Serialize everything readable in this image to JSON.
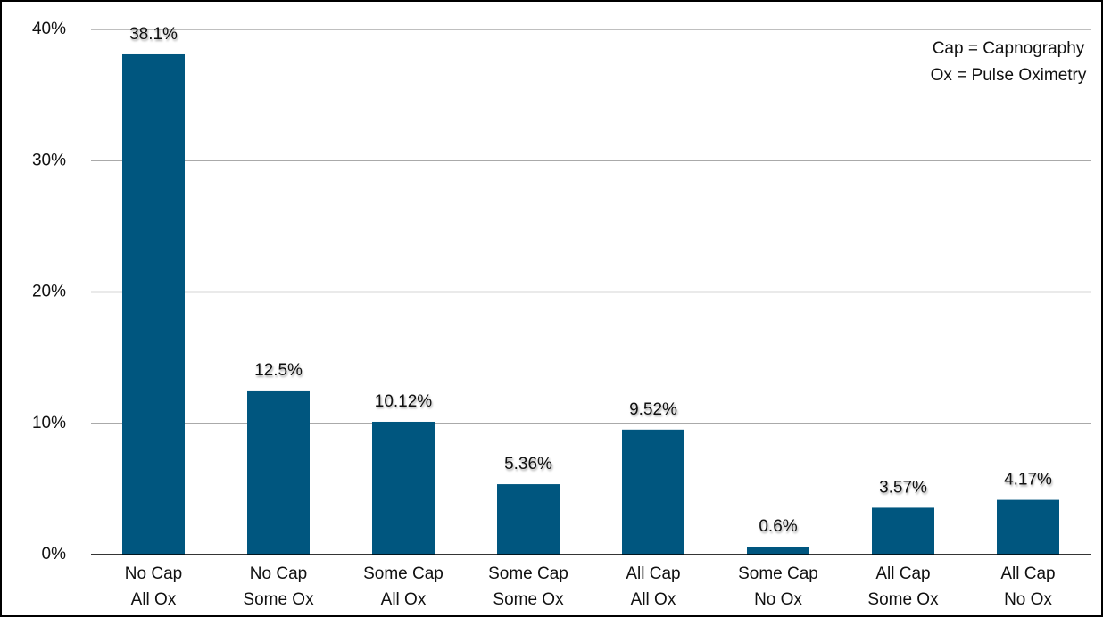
{
  "chart_data": {
    "type": "bar",
    "categories": [
      [
        "No Cap",
        "All Ox"
      ],
      [
        "No Cap",
        "Some Ox"
      ],
      [
        "Some Cap",
        "All Ox"
      ],
      [
        "Some Cap",
        "Some Ox"
      ],
      [
        "All Cap",
        "All Ox"
      ],
      [
        "Some Cap",
        "No Ox"
      ],
      [
        "All Cap",
        "Some Ox"
      ],
      [
        "All Cap",
        "No Ox"
      ]
    ],
    "values": [
      38.1,
      12.5,
      10.12,
      5.36,
      9.52,
      0.6,
      3.57,
      4.17
    ],
    "value_labels": [
      "38.1%",
      "12.5%",
      "10.12%",
      "5.36%",
      "9.52%",
      "0.6%",
      "3.57%",
      "4.17%"
    ],
    "color": "#00567f",
    "ylim": [
      0,
      40
    ],
    "yticks": [
      {
        "value": 0,
        "label": "0%"
      },
      {
        "value": 10,
        "label": "10%"
      },
      {
        "value": 20,
        "label": "20%"
      },
      {
        "value": 30,
        "label": "30%"
      },
      {
        "value": 40,
        "label": "40%"
      }
    ],
    "grid": true,
    "annotation": [
      "Cap = Capnography",
      "Ox = Pulse Oximetry"
    ]
  }
}
